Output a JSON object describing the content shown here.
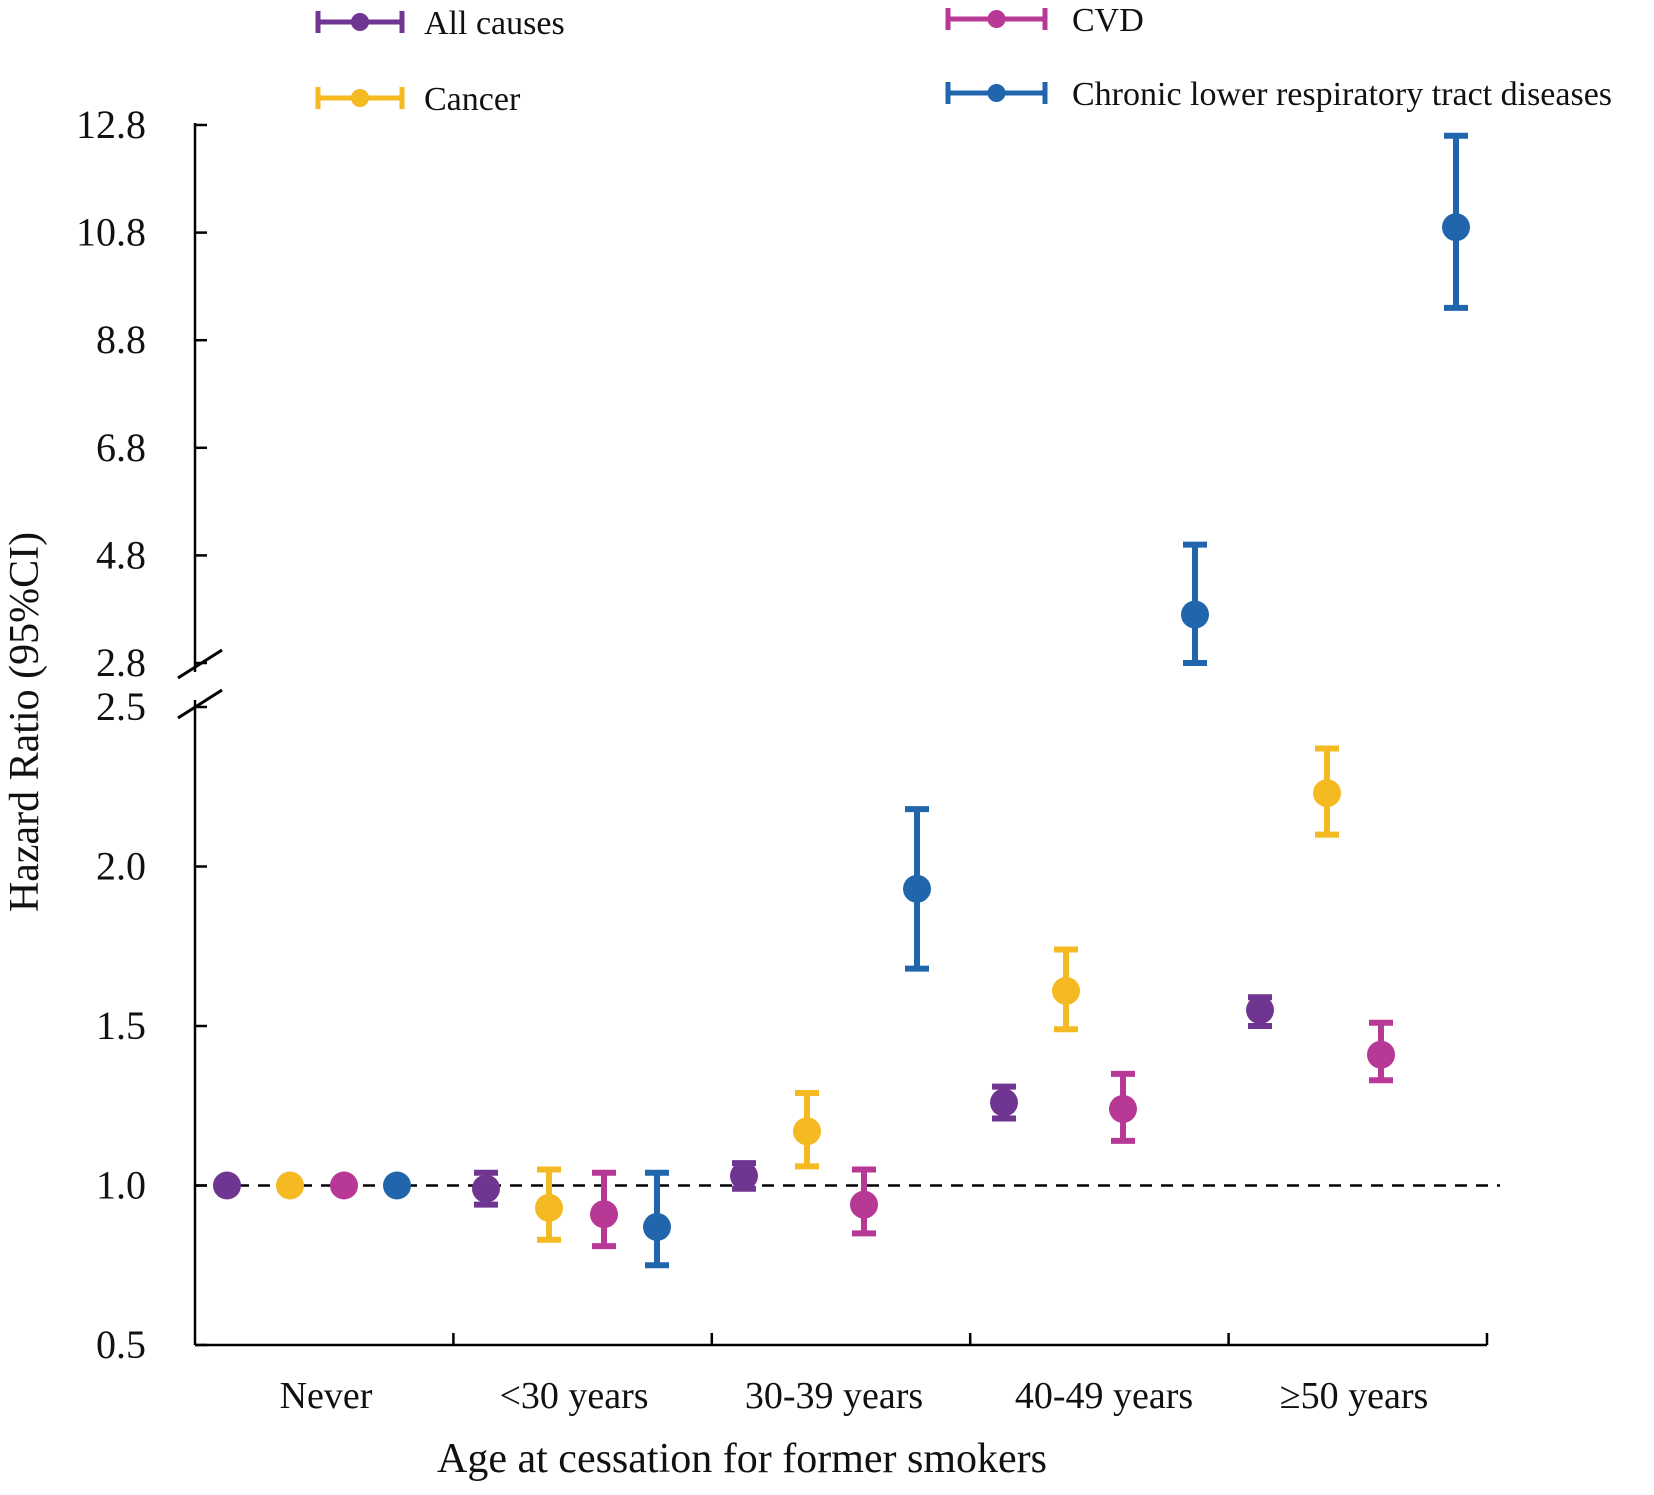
{
  "chart_data": {
    "type": "scatter",
    "subtype": "forest-plot-with-error-bars",
    "xlabel": "Age at cessation for former smokers",
    "ylabel": "Hazard Ratio (95%CI)",
    "categories": [
      "Never",
      "<30 years",
      "30-39 years",
      "40-49 years",
      "≥50 years"
    ],
    "y_axis": {
      "broken": true,
      "lower_segment": {
        "range": [
          0.5,
          2.5
        ],
        "ticks": [
          "0.5",
          "1.0",
          "1.5",
          "2.0",
          "2.5"
        ]
      },
      "upper_segment": {
        "range": [
          2.8,
          12.8
        ],
        "ticks": [
          "2.8",
          "4.8",
          "6.8",
          "8.8",
          "10.8",
          "12.8"
        ]
      }
    },
    "reference_line": 1.0,
    "legend_position": "top",
    "series": [
      {
        "name": "All causes",
        "color": "#6f3590",
        "values": [
          {
            "category": "Never",
            "hr": 1.0,
            "lower": null,
            "upper": null
          },
          {
            "category": "<30 years",
            "hr": 0.99,
            "lower": 0.94,
            "upper": 1.04
          },
          {
            "category": "30-39 years",
            "hr": 1.03,
            "lower": 0.99,
            "upper": 1.07
          },
          {
            "category": "40-49 years",
            "hr": 1.26,
            "lower": 1.21,
            "upper": 1.31
          },
          {
            "category": "≥50 years",
            "hr": 1.55,
            "lower": 1.5,
            "upper": 1.59
          }
        ]
      },
      {
        "name": "Cancer",
        "color": "#f5b921",
        "values": [
          {
            "category": "Never",
            "hr": 1.0,
            "lower": null,
            "upper": null
          },
          {
            "category": "<30 years",
            "hr": 0.93,
            "lower": 0.83,
            "upper": 1.05
          },
          {
            "category": "30-39 years",
            "hr": 1.17,
            "lower": 1.06,
            "upper": 1.29
          },
          {
            "category": "40-49 years",
            "hr": 1.61,
            "lower": 1.49,
            "upper": 1.74
          },
          {
            "category": "≥50 years",
            "hr": 2.23,
            "lower": 2.1,
            "upper": 2.37
          }
        ]
      },
      {
        "name": "CVD",
        "color": "#b83896",
        "values": [
          {
            "category": "Never",
            "hr": 1.0,
            "lower": null,
            "upper": null
          },
          {
            "category": "<30 years",
            "hr": 0.91,
            "lower": 0.81,
            "upper": 1.04
          },
          {
            "category": "30-39 years",
            "hr": 0.94,
            "lower": 0.85,
            "upper": 1.05
          },
          {
            "category": "40-49 years",
            "hr": 1.24,
            "lower": 1.14,
            "upper": 1.35
          },
          {
            "category": "≥50 years",
            "hr": 1.41,
            "lower": 1.33,
            "upper": 1.51
          }
        ]
      },
      {
        "name": "Chronic lower respiratory tract diseases",
        "color": "#2166ac",
        "values": [
          {
            "category": "Never",
            "hr": 1.0,
            "lower": null,
            "upper": null
          },
          {
            "category": "<30 years",
            "hr": 0.87,
            "lower": 0.75,
            "upper": 1.04
          },
          {
            "category": "30-39 years",
            "hr": 1.93,
            "lower": 1.68,
            "upper": 2.18
          },
          {
            "category": "40-49 years",
            "hr": 3.7,
            "lower": 2.8,
            "upper": 5.0
          },
          {
            "category": "≥50 years",
            "hr": 10.9,
            "lower": 9.4,
            "upper": 12.6
          }
        ]
      }
    ]
  }
}
